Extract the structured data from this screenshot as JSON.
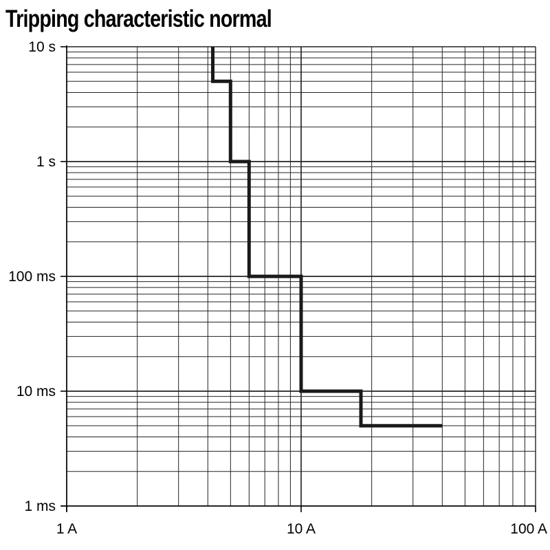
{
  "chart_data": {
    "type": "line",
    "title": "Tripping characteristic normal",
    "xlabel": "",
    "ylabel": "",
    "x_scale": "log",
    "y_scale": "log",
    "xlim": [
      1,
      100
    ],
    "ylim": [
      0.001,
      10
    ],
    "x_ticks": [
      {
        "value": 1,
        "label": "1 A"
      },
      {
        "value": 10,
        "label": "10 A"
      },
      {
        "value": 100,
        "label": "100 A"
      }
    ],
    "y_ticks": [
      {
        "value": 10,
        "label": "10 s"
      },
      {
        "value": 1,
        "label": "1 s"
      },
      {
        "value": 0.1,
        "label": "100 ms"
      },
      {
        "value": 0.01,
        "label": "10 ms"
      },
      {
        "value": 0.001,
        "label": "1 ms"
      }
    ],
    "grid": true,
    "series": [
      {
        "color": "#1a1a1a",
        "step": true,
        "points": [
          {
            "x": 4.2,
            "y": 10
          },
          {
            "x": 4.2,
            "y": 5
          },
          {
            "x": 5,
            "y": 5
          },
          {
            "x": 5,
            "y": 1
          },
          {
            "x": 6,
            "y": 1
          },
          {
            "x": 6,
            "y": 0.1
          },
          {
            "x": 10,
            "y": 0.1
          },
          {
            "x": 10,
            "y": 0.01
          },
          {
            "x": 18,
            "y": 0.01
          },
          {
            "x": 18,
            "y": 0.005
          },
          {
            "x": 40,
            "y": 0.005
          }
        ]
      }
    ]
  }
}
